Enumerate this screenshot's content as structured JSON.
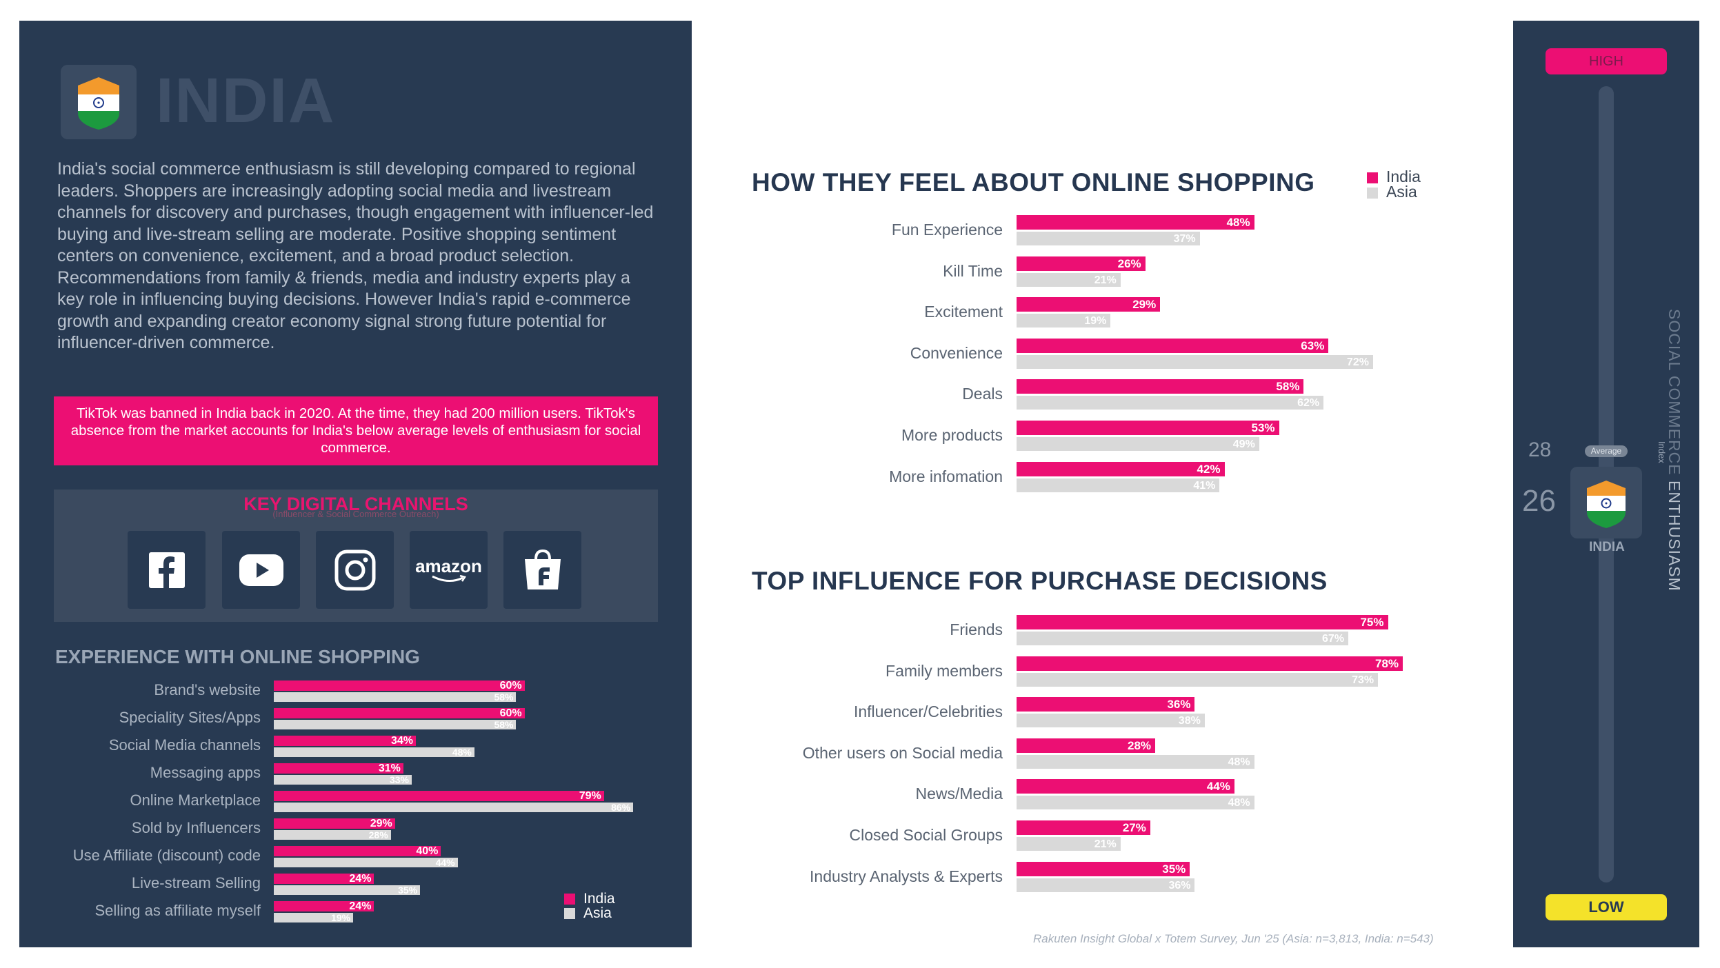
{
  "country": {
    "name": "INDIA",
    "intro": "India's social commerce enthusiasm is still developing compared to regional leaders. Shoppers are increasingly adopting social media and livestream channels for discovery and purchases, though engagement with influencer-led buying and live-stream selling are moderate. Positive shopping sentiment centers on convenience, excitement, and a broad product selection. Recommendations from family & friends, media and industry experts play a key role in influencing buying decisions. However India's rapid e-commerce growth and expanding creator economy signal strong future potential for influencer-driven commerce.",
    "tiktok_note": "TikTok was banned in India back in 2020. At the time, they had 200 million users. TikTok's absence from the market accounts for India's below average levels of enthusiasm for social commerce."
  },
  "channels": {
    "title": "KEY DIGITAL CHANNELS",
    "subtitle": "(Influencer & Social Commerce Outreach)",
    "items": [
      {
        "icon": "facebook-icon",
        "label": ""
      },
      {
        "icon": "youtube-icon",
        "label": ""
      },
      {
        "icon": "instagram-icon",
        "label": ""
      },
      {
        "icon": "amazon-icon",
        "label": "amazon"
      },
      {
        "icon": "flipkart-icon",
        "label": ""
      }
    ]
  },
  "colors": {
    "india": "#ec0f73",
    "asia": "#d9d9d9",
    "panel": "#283a52",
    "low": "#f4e22a"
  },
  "legend": {
    "india": "India",
    "asia": "Asia"
  },
  "chart_data": [
    {
      "type": "bar",
      "orientation": "horizontal",
      "title": "EXPERIENCE WITH ONLINE SHOPPING",
      "categories": [
        "Brand's website",
        "Speciality Sites/Apps",
        "Social Media channels",
        "Messaging apps",
        "Online Marketplace",
        "Sold by Influencers",
        "Use Affiliate (discount) code",
        "Live-stream Selling",
        "Selling as affiliate myself"
      ],
      "series": [
        {
          "name": "India",
          "values": [
            60,
            60,
            34,
            31,
            79,
            29,
            40,
            24,
            24
          ],
          "labels": [
            "60%",
            "60%",
            "34%",
            "31%",
            "79%",
            "29%",
            "40%",
            "24%",
            "24%"
          ]
        },
        {
          "name": "Asia",
          "values": [
            58,
            58,
            48,
            33,
            86,
            28,
            44,
            35,
            19
          ],
          "labels": [
            "58%",
            "58%",
            "48%",
            "33%",
            "86%",
            "28%",
            "44%",
            "35%",
            "19%"
          ]
        }
      ],
      "legend_position": "bottom-right"
    },
    {
      "type": "bar",
      "orientation": "horizontal",
      "title": "HOW THEY FEEL ABOUT ONLINE SHOPPING",
      "categories": [
        "Fun Experience",
        "Kill Time",
        "Excitement",
        "Convenience",
        "Deals",
        "More products",
        "More infomation"
      ],
      "series": [
        {
          "name": "India",
          "values": [
            48,
            26,
            29,
            63,
            58,
            53,
            42
          ],
          "labels": [
            "48%",
            "26%",
            "29%",
            "63%",
            "58%",
            "53%",
            "42%"
          ]
        },
        {
          "name": "Asia",
          "values": [
            37,
            21,
            19,
            72,
            62,
            49,
            41
          ],
          "labels": [
            "37%",
            "21%",
            "19%",
            "72%",
            "62%",
            "49%",
            "41%"
          ]
        }
      ],
      "legend_position": "top-right"
    },
    {
      "type": "bar",
      "orientation": "horizontal",
      "title": "TOP INFLUENCE FOR PURCHASE DECISIONS",
      "categories": [
        "Friends",
        "Family members",
        "Influencer/Celebrities",
        "Other users on Social media",
        "News/Media",
        "Closed Social Groups",
        "Industry Analysts & Experts"
      ],
      "series": [
        {
          "name": "India",
          "values": [
            75,
            78,
            36,
            28,
            44,
            27,
            35
          ],
          "labels": [
            "75%",
            "78%",
            "36%",
            "28%",
            "44%",
            "27%",
            "35%"
          ]
        },
        {
          "name": "Asia",
          "values": [
            67,
            73,
            38,
            48,
            48,
            21,
            36
          ],
          "labels": [
            "67%",
            "73%",
            "38%",
            "48%",
            "48%",
            "21%",
            "36%"
          ]
        }
      ]
    }
  ],
  "gauge": {
    "high_label": "HIGH",
    "low_label": "LOW",
    "average_value": "28",
    "average_label": "Average",
    "country_value": "26",
    "country_label": "INDIA",
    "title_part1": "SOCIAL COMMERCE",
    "title_part2": " ENTHUSIASM",
    "index_label": "Index"
  },
  "source": "Rakuten Insight Global x Totem Survey, Jun '25 (Asia: n=3,813, India: n=543)"
}
